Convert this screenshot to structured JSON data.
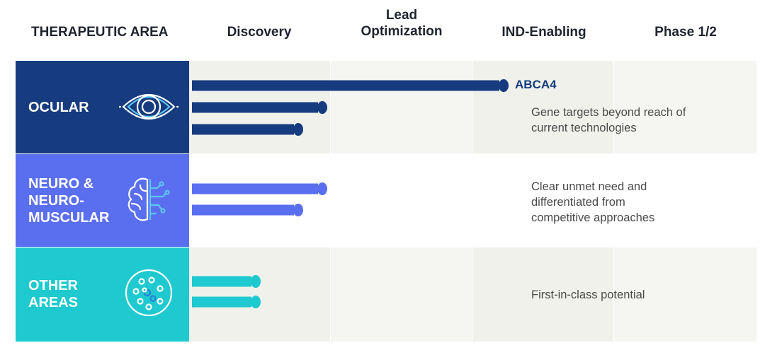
{
  "header": {
    "area": "THERAPEUTIC AREA",
    "stages": [
      "Discovery",
      "Lead\nOptimization",
      "IND-Enabling",
      "Phase 1/2"
    ]
  },
  "chart_data": {
    "type": "bar",
    "orientation": "horizontal",
    "stages": [
      "Discovery",
      "Lead Optimization",
      "IND-Enabling",
      "Phase 1/2"
    ],
    "progress_unit": "stage columns reached (0 = start of Discovery, 4 = end of Phase 1/2)",
    "areas": [
      {
        "name": "OCULAR",
        "icon": "eye-icon",
        "color": "#163b7f",
        "bar_color": "#163b7f",
        "description": "Gene targets beyond reach of current technologies",
        "programs": [
          {
            "label": "ABCA4",
            "progress": 2.2
          },
          {
            "label": "",
            "progress": 0.92
          },
          {
            "label": "",
            "progress": 0.75
          }
        ]
      },
      {
        "name": "NEURO &\nNEURO-\nMUSCULAR",
        "icon": "brain-icon",
        "color": "#5a6ff0",
        "bar_color": "#5a6ff0",
        "description": "Clear unmet need and differentiated from competitive approaches",
        "programs": [
          {
            "label": "",
            "progress": 0.92
          },
          {
            "label": "",
            "progress": 0.75
          }
        ]
      },
      {
        "name": "OTHER\nAREAS",
        "icon": "cell-icon",
        "color": "#1ec9cf",
        "bar_color": "#1ec9cf",
        "description": "First-in-class potential",
        "programs": [
          {
            "label": "",
            "progress": 0.45
          },
          {
            "label": "",
            "progress": 0.45
          }
        ]
      }
    ]
  }
}
